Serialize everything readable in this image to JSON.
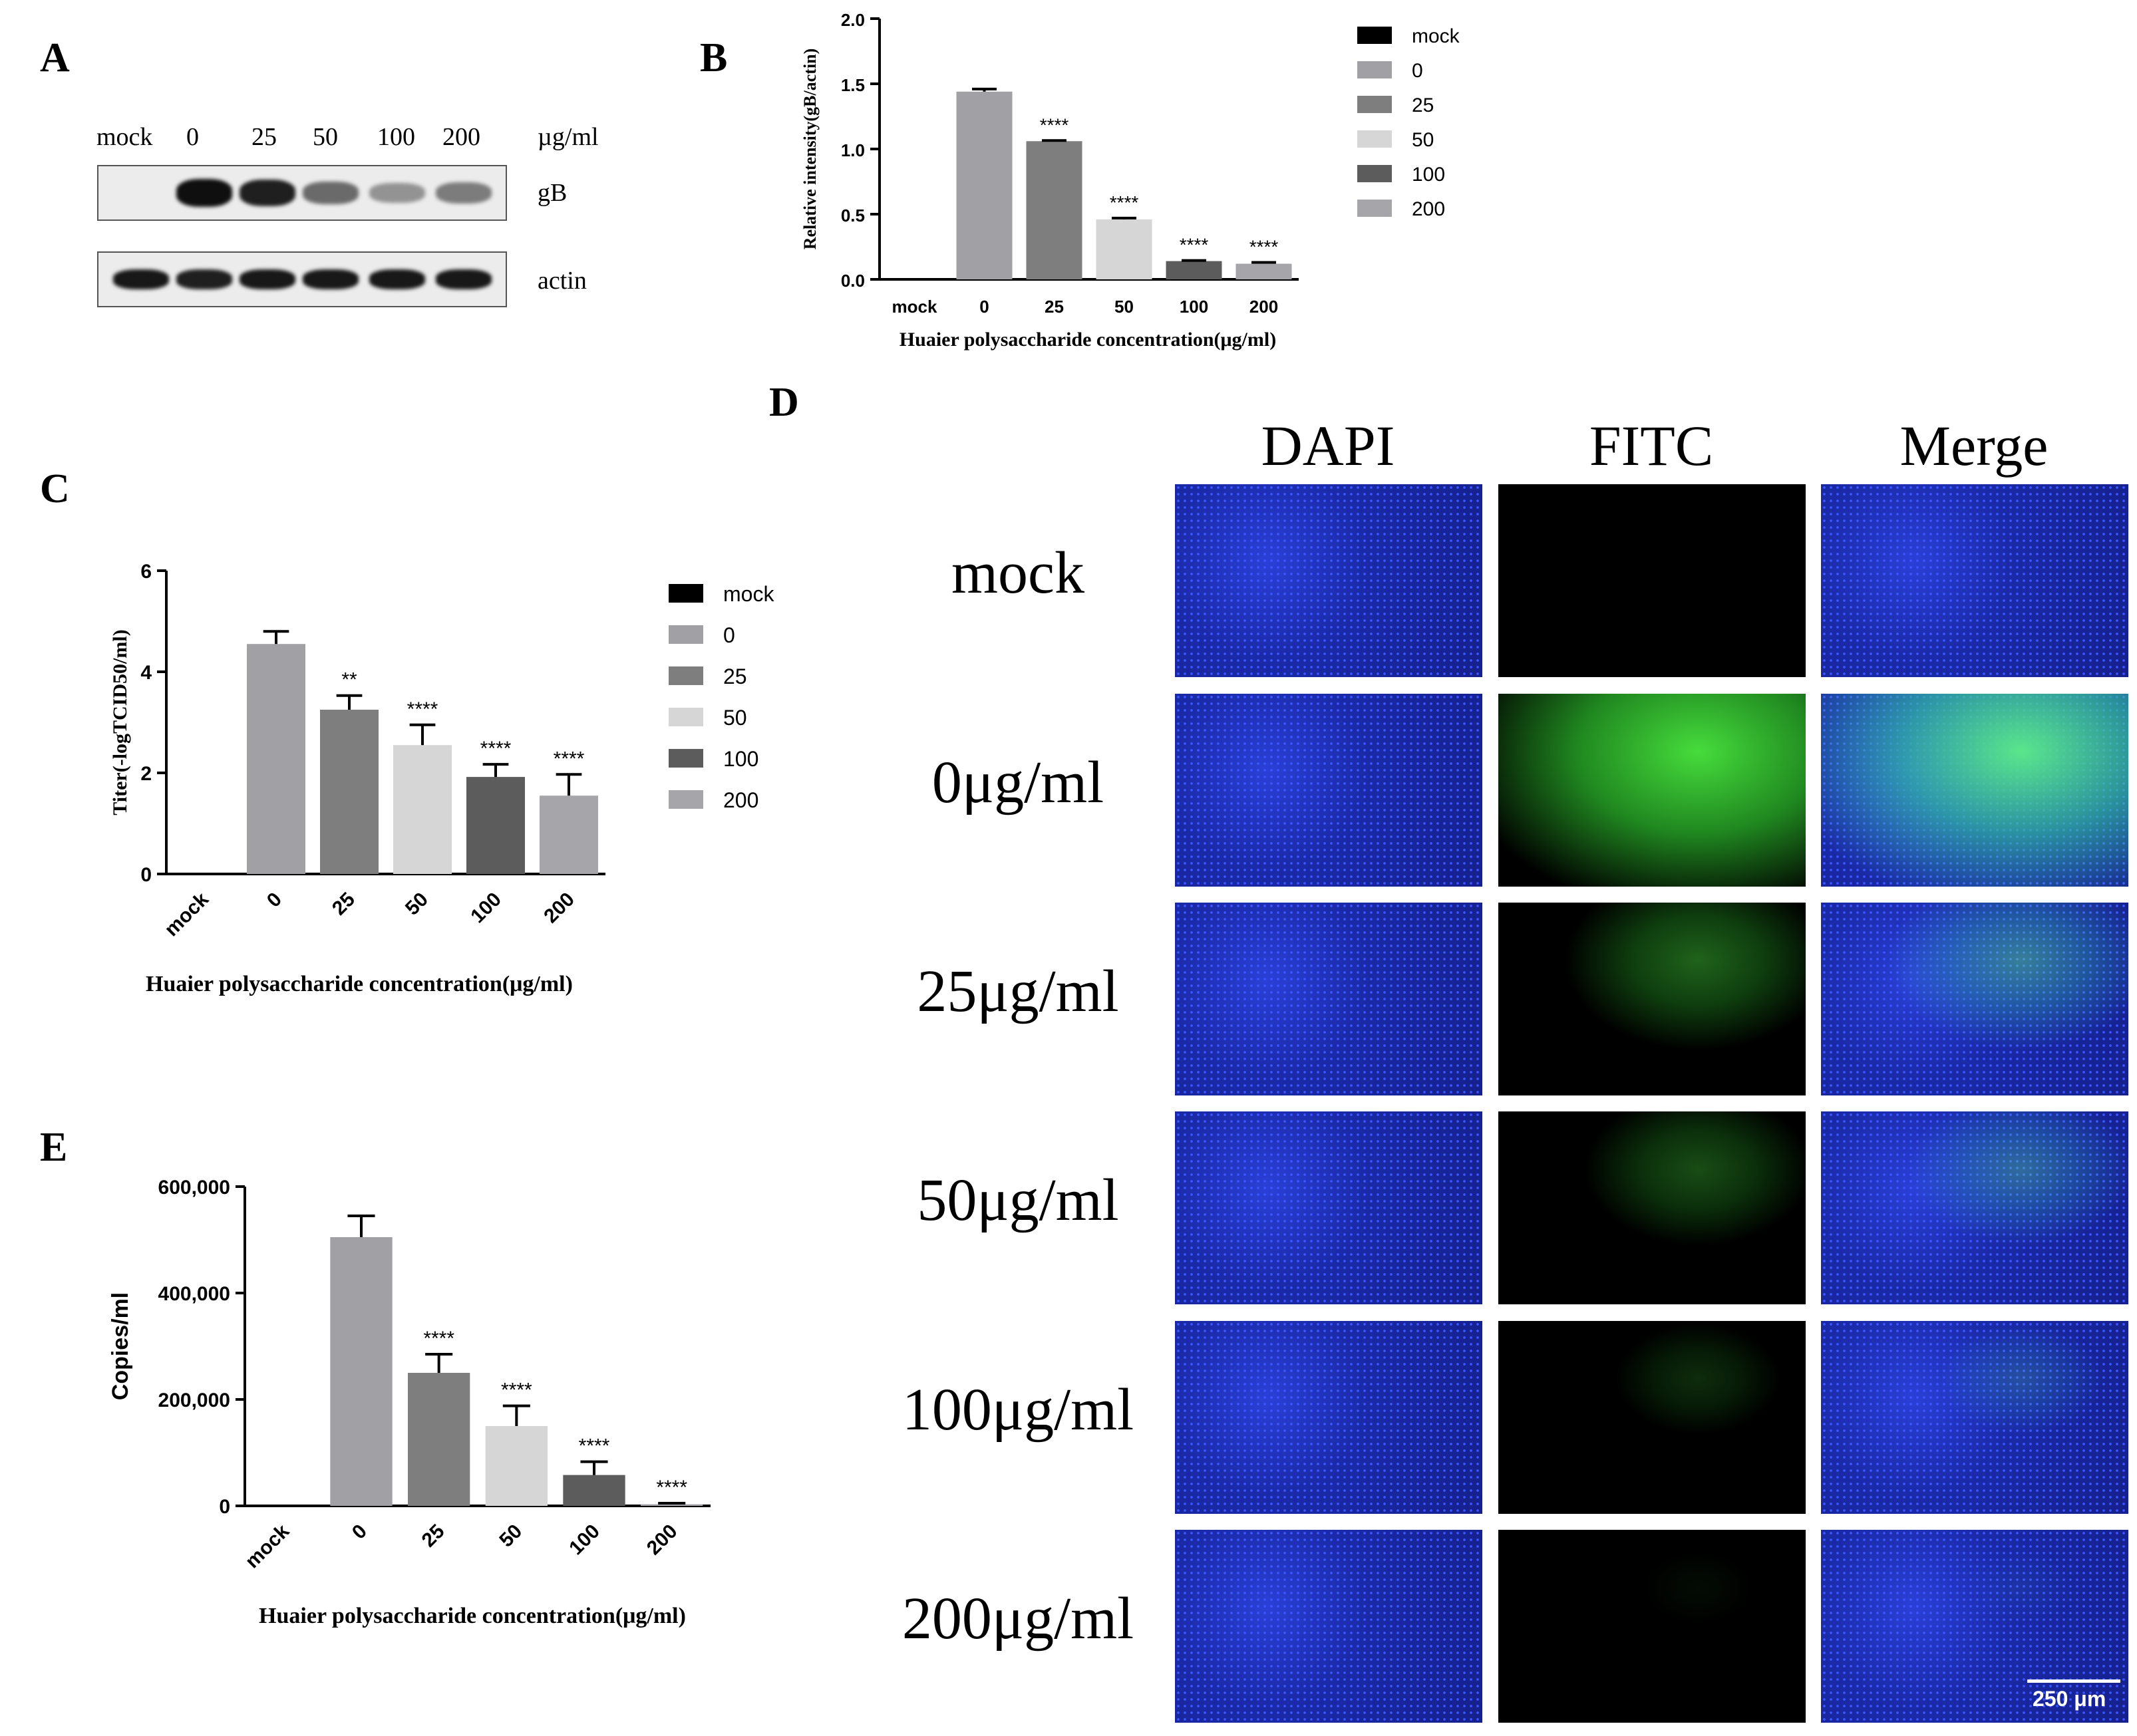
{
  "panels": {
    "a": "A",
    "b": "B",
    "c": "C",
    "d": "D",
    "e": "E"
  },
  "western_blot": {
    "lanes": [
      "mock",
      "0",
      "25",
      "50",
      "100",
      "200"
    ],
    "unit": "µg/ml",
    "bands": [
      {
        "label": "gB",
        "intensity": [
          0.0,
          1.0,
          0.9,
          0.45,
          0.2,
          0.35
        ]
      },
      {
        "label": "actin",
        "intensity": [
          0.95,
          0.9,
          0.95,
          0.95,
          0.95,
          0.95
        ]
      }
    ]
  },
  "chart_data": [
    {
      "id": "B",
      "type": "bar",
      "categories": [
        "mock",
        "0",
        "25",
        "50",
        "100",
        "200"
      ],
      "values": [
        0,
        1.44,
        1.06,
        0.46,
        0.14,
        0.12
      ],
      "errors": [
        0,
        0.02,
        0.005,
        0.01,
        0.005,
        0.01
      ],
      "significance": [
        "",
        "",
        "****",
        "****",
        "****",
        "****"
      ],
      "colors": [
        "#000000",
        "#a1a1a5",
        "#7e7e7e",
        "#d6d6d6",
        "#5c5c5c",
        "#a6a6aa"
      ],
      "ylabel": "Relative intensity(gB/actin)",
      "xlabel": "Huaier polysaccharide concentration(μg/ml)",
      "ylim": [
        0,
        2.0
      ],
      "yticks": [
        "0.0",
        "0.5",
        "1.0",
        "1.5",
        "2.0"
      ],
      "legend": [
        "mock",
        "0",
        "25",
        "50",
        "100",
        "200"
      ],
      "legend_position": "right"
    },
    {
      "id": "C",
      "type": "bar",
      "categories": [
        "mock",
        "0",
        "25",
        "50",
        "100",
        "200"
      ],
      "values": [
        0,
        4.55,
        3.25,
        2.55,
        1.92,
        1.55
      ],
      "errors": [
        0,
        0.25,
        0.28,
        0.4,
        0.25,
        0.42
      ],
      "significance": [
        "",
        "",
        "**",
        "****",
        "****",
        "****"
      ],
      "colors": [
        "#000000",
        "#a1a1a5",
        "#7e7e7e",
        "#d6d6d6",
        "#5c5c5c",
        "#a6a6aa"
      ],
      "ylabel": "Titer(-logTCID50/ml)",
      "xlabel": "Huaier polysaccharide concentration(μg/ml)",
      "ylim": [
        0,
        6
      ],
      "yticks": [
        "0",
        "2",
        "4",
        "6"
      ],
      "legend": [
        "mock",
        "0",
        "25",
        "50",
        "100",
        "200"
      ],
      "legend_position": "right"
    },
    {
      "id": "E",
      "type": "bar",
      "categories": [
        "mock",
        "0",
        "25",
        "50",
        "100",
        "200"
      ],
      "values": [
        0,
        505000,
        250000,
        150000,
        58000,
        3000
      ],
      "errors": [
        0,
        40000,
        35000,
        38000,
        25000,
        2000
      ],
      "significance": [
        "",
        "",
        "****",
        "****",
        "****",
        "****"
      ],
      "colors": [
        "#000000",
        "#a1a1a5",
        "#7e7e7e",
        "#d6d6d6",
        "#5c5c5c",
        "#a6a6aa"
      ],
      "ylabel": "Copies/ml",
      "xlabel": "Huaier polysaccharide concentration(μg/ml)",
      "ylim": [
        0,
        600000
      ],
      "yticks": [
        "0",
        "200,000",
        "400,000",
        "600,000"
      ]
    }
  ],
  "fluorescence": {
    "columns": [
      "DAPI",
      "FITC",
      "Merge"
    ],
    "rows": [
      "mock",
      "0μg/ml",
      "25μg/ml",
      "50μg/ml",
      "100μg/ml",
      "200μg/ml"
    ],
    "green_level": [
      0.0,
      1.0,
      0.45,
      0.35,
      0.2,
      0.05
    ],
    "scale_bar": "250 μm",
    "colors": {
      "dapi": "#1f2fbf",
      "fitc": "#36c83a",
      "background": "#000000"
    }
  }
}
